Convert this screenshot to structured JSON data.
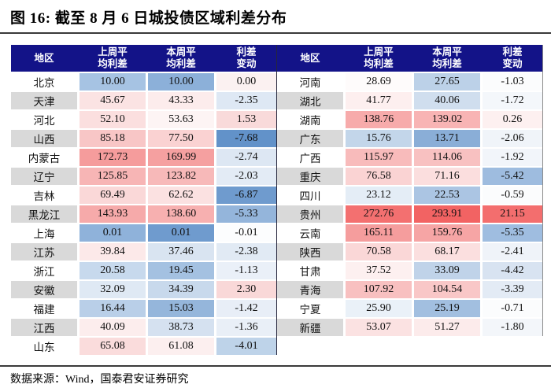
{
  "title": "图 16:  截至 8 月 6 日城投债区域利差分布",
  "footer": {
    "source_label": "数据来源：Wind，国泰君安证券研究"
  },
  "colors": {
    "header_bg": "#131388",
    "header_text": "#FFFFFF",
    "cell_text": "#121212",
    "rule_dark": "#3A3A3A",
    "divider_dark": "#26263C",
    "table_edge": "#8A8A8A",
    "region_alt_bg": "#D9D9D9",
    "scale_max_red": "#F26363",
    "scale_max_blue": "#6292C9"
  },
  "table": {
    "header": {
      "region": "地区",
      "last_week_l1": "上周平",
      "last_week_l2": "均利差",
      "this_week_l1": "本周平",
      "this_week_l2": "均利差",
      "change_l1": "利差",
      "change_l2": "变动"
    },
    "left_rows": [
      {
        "region": "北京",
        "region_bg": "#FFFFFF",
        "cells": [
          {
            "v": "10.00",
            "bg": "#A6C3E3"
          },
          {
            "v": "10.00",
            "bg": "#8CB0D9"
          },
          {
            "v": "0.00",
            "bg": "#FBF1F1"
          }
        ]
      },
      {
        "region": "天津",
        "region_bg": "#D9D9D9",
        "cells": [
          {
            "v": "45.67",
            "bg": "#FBE3E3"
          },
          {
            "v": "43.33",
            "bg": "#FCECEC"
          },
          {
            "v": "-2.35",
            "bg": "#DEE8F4"
          }
        ]
      },
      {
        "region": "河北",
        "region_bg": "#FFFFFF",
        "cells": [
          {
            "v": "52.10",
            "bg": "#FBDFDF"
          },
          {
            "v": "53.63",
            "bg": "#FDF4F4"
          },
          {
            "v": "1.53",
            "bg": "#F9DADA"
          }
        ]
      },
      {
        "region": "山西",
        "region_bg": "#D9D9D9",
        "cells": [
          {
            "v": "85.18",
            "bg": "#F8C6C6"
          },
          {
            "v": "77.50",
            "bg": "#FAD2D2"
          },
          {
            "v": "-7.68",
            "bg": "#6292C9"
          }
        ]
      },
      {
        "region": "内蒙古",
        "region_bg": "#FFFFFF",
        "cells": [
          {
            "v": "172.73",
            "bg": "#F59C9C"
          },
          {
            "v": "169.99",
            "bg": "#F5A0A0"
          },
          {
            "v": "-2.74",
            "bg": "#DDE7F3"
          }
        ]
      },
      {
        "region": "辽宁",
        "region_bg": "#D9D9D9",
        "cells": [
          {
            "v": "125.85",
            "bg": "#F7B5B5"
          },
          {
            "v": "123.82",
            "bg": "#F7B9B9"
          },
          {
            "v": "-2.03",
            "bg": "#E3EBF5"
          }
        ]
      },
      {
        "region": "吉林",
        "region_bg": "#FFFFFF",
        "cells": [
          {
            "v": "69.49",
            "bg": "#FAD8D8"
          },
          {
            "v": "62.62",
            "bg": "#FBE1E1"
          },
          {
            "v": "-6.87",
            "bg": "#6F9BCE"
          }
        ]
      },
      {
        "region": "黑龙江",
        "region_bg": "#D9D9D9",
        "cells": [
          {
            "v": "143.93",
            "bg": "#F6AAAA"
          },
          {
            "v": "138.60",
            "bg": "#F7B0B0"
          },
          {
            "v": "-5.33",
            "bg": "#94B5DB"
          }
        ]
      },
      {
        "region": "上海",
        "region_bg": "#FFFFFF",
        "cells": [
          {
            "v": "0.01",
            "bg": "#8FB2DA"
          },
          {
            "v": "0.01",
            "bg": "#6F9BCE"
          },
          {
            "v": "-0.01",
            "bg": "#FCFDFE"
          }
        ]
      },
      {
        "region": "江苏",
        "region_bg": "#D9D9D9",
        "cells": [
          {
            "v": "39.84",
            "bg": "#FCE9E9"
          },
          {
            "v": "37.46",
            "bg": "#D9E4F1"
          },
          {
            "v": "-2.38",
            "bg": "#E1EAF4"
          }
        ]
      },
      {
        "region": "浙江",
        "region_bg": "#FFFFFF",
        "cells": [
          {
            "v": "20.58",
            "bg": "#C7D9ED"
          },
          {
            "v": "19.45",
            "bg": "#A4C1E1"
          },
          {
            "v": "-1.13",
            "bg": "#EAF0F8"
          }
        ]
      },
      {
        "region": "安徽",
        "region_bg": "#D9D9D9",
        "cells": [
          {
            "v": "32.09",
            "bg": "#DFE9F4"
          },
          {
            "v": "34.39",
            "bg": "#C8D9EC"
          },
          {
            "v": "2.30",
            "bg": "#F9D8D8"
          }
        ]
      },
      {
        "region": "福建",
        "region_bg": "#FFFFFF",
        "cells": [
          {
            "v": "16.44",
            "bg": "#B9CFE8"
          },
          {
            "v": "15.03",
            "bg": "#95B6DB"
          },
          {
            "v": "-1.42",
            "bg": "#E8EEF7"
          }
        ]
      },
      {
        "region": "江西",
        "region_bg": "#D9D9D9",
        "cells": [
          {
            "v": "40.09",
            "bg": "#FCEDED"
          },
          {
            "v": "38.73",
            "bg": "#D5E1F0"
          },
          {
            "v": "-1.36",
            "bg": "#E9EFF7"
          }
        ]
      },
      {
        "region": "山东",
        "region_bg": "#FFFFFF",
        "cells": [
          {
            "v": "65.08",
            "bg": "#FADCDC"
          },
          {
            "v": "61.08",
            "bg": "#FCEFEF"
          },
          {
            "v": "-4.01",
            "bg": "#BED3E9"
          }
        ]
      }
    ],
    "right_rows": [
      {
        "region": "河南",
        "region_bg": "#FFFFFF",
        "cells": [
          {
            "v": "28.69",
            "bg": "#FEFBFB"
          },
          {
            "v": "27.65",
            "bg": "#BCD1E8"
          },
          {
            "v": "-1.03",
            "bg": "#FBFCFD"
          }
        ]
      },
      {
        "region": "湖北",
        "region_bg": "#D9D9D9",
        "cells": [
          {
            "v": "41.77",
            "bg": "#FDEFEF"
          },
          {
            "v": "40.06",
            "bg": "#D0DEEE"
          },
          {
            "v": "-1.72",
            "bg": "#F4F7FB"
          }
        ]
      },
      {
        "region": "湖南",
        "region_bg": "#FFFFFF",
        "cells": [
          {
            "v": "138.76",
            "bg": "#F7ABAB"
          },
          {
            "v": "139.02",
            "bg": "#F8B4B4"
          },
          {
            "v": "0.26",
            "bg": "#FDF0F0"
          }
        ]
      },
      {
        "region": "广东",
        "region_bg": "#D9D9D9",
        "cells": [
          {
            "v": "15.76",
            "bg": "#C3D6EA"
          },
          {
            "v": "13.71",
            "bg": "#8AAED7"
          },
          {
            "v": "-2.06",
            "bg": "#F0F4F9"
          }
        ]
      },
      {
        "region": "广西",
        "region_bg": "#FFFFFF",
        "cells": [
          {
            "v": "115.97",
            "bg": "#F8BBBB"
          },
          {
            "v": "114.06",
            "bg": "#F8C1C1"
          },
          {
            "v": "-1.92",
            "bg": "#F2F5FA"
          }
        ]
      },
      {
        "region": "重庆",
        "region_bg": "#D9D9D9",
        "cells": [
          {
            "v": "76.58",
            "bg": "#FAD3D3"
          },
          {
            "v": "71.16",
            "bg": "#FBDEDE"
          },
          {
            "v": "-5.42",
            "bg": "#9EBCDF"
          }
        ]
      },
      {
        "region": "四川",
        "region_bg": "#FFFFFF",
        "cells": [
          {
            "v": "23.12",
            "bg": "#E4EDF6"
          },
          {
            "v": "22.53",
            "bg": "#ABC5E3"
          },
          {
            "v": "-0.59",
            "bg": "#FBFCFD"
          }
        ]
      },
      {
        "region": "贵州",
        "region_bg": "#D9D9D9",
        "cells": [
          {
            "v": "272.76",
            "bg": "#F37070"
          },
          {
            "v": "293.91",
            "bg": "#F26363"
          },
          {
            "v": "21.15",
            "bg": "#F36E6E"
          }
        ]
      },
      {
        "region": "云南",
        "region_bg": "#FFFFFF",
        "cells": [
          {
            "v": "165.11",
            "bg": "#F59D9D"
          },
          {
            "v": "159.76",
            "bg": "#F6A5A5"
          },
          {
            "v": "-5.35",
            "bg": "#9FBDE0"
          }
        ]
      },
      {
        "region": "陕西",
        "region_bg": "#D9D9D9",
        "cells": [
          {
            "v": "70.58",
            "bg": "#FAD7D7"
          },
          {
            "v": "68.17",
            "bg": "#FBDFDF"
          },
          {
            "v": "-2.41",
            "bg": "#EFF3F9"
          }
        ]
      },
      {
        "region": "甘肃",
        "region_bg": "#FFFFFF",
        "cells": [
          {
            "v": "37.52",
            "bg": "#FDF0F0"
          },
          {
            "v": "33.09",
            "bg": "#C0D3E9"
          },
          {
            "v": "-4.42",
            "bg": "#D8E3F1"
          }
        ]
      },
      {
        "region": "青海",
        "region_bg": "#D9D9D9",
        "cells": [
          {
            "v": "107.92",
            "bg": "#F8C0C0"
          },
          {
            "v": "104.54",
            "bg": "#F9C7C7"
          },
          {
            "v": "-3.39",
            "bg": "#E3EBF5"
          }
        ]
      },
      {
        "region": "宁夏",
        "region_bg": "#FFFFFF",
        "cells": [
          {
            "v": "25.90",
            "bg": "#EAF1F8"
          },
          {
            "v": "25.19",
            "bg": "#A2BFE0"
          },
          {
            "v": "-0.71",
            "bg": "#FBFCFD"
          }
        ]
      },
      {
        "region": "新疆",
        "region_bg": "#D9D9D9",
        "cells": [
          {
            "v": "53.07",
            "bg": "#FBE2E2"
          },
          {
            "v": "51.27",
            "bg": "#FCEBEB"
          },
          {
            "v": "-1.80",
            "bg": "#F3F6FA"
          }
        ]
      }
    ]
  }
}
